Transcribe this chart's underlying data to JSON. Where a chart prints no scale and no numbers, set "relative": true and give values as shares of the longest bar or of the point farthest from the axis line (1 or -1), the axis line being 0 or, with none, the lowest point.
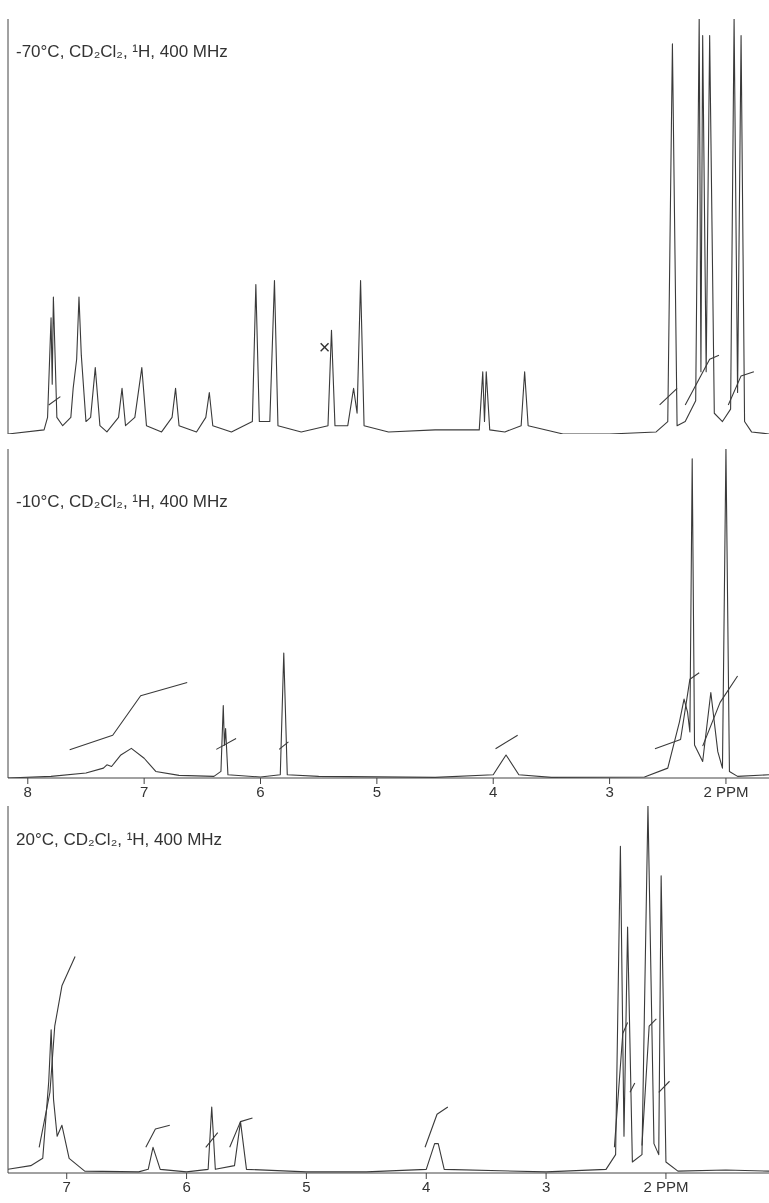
{
  "chart_data": [
    {
      "type": "line",
      "title": "-70°C, CD₂Cl₂, ¹H, 400 MHz",
      "relative": true,
      "xlim": [
        8.17,
        1.63
      ],
      "tick_labels": false,
      "annotations": [
        {
          "text": "×",
          "x": 5.39,
          "y": 0.21
        }
      ],
      "series": [
        {
          "color": "#3a3a3a",
          "x": [
            8.17,
            7.86,
            7.83,
            7.8,
            7.79,
            7.78,
            7.75,
            7.7,
            7.63,
            7.61,
            7.58,
            7.56,
            7.54,
            7.5,
            7.46,
            7.42,
            7.38,
            7.32,
            7.22,
            7.19,
            7.16,
            7.08,
            7.02,
            6.98,
            6.85,
            6.76,
            6.73,
            6.7,
            6.55,
            6.47,
            6.44,
            6.41,
            6.25,
            6.07,
            6.04,
            6.01,
            5.92,
            5.88,
            5.85,
            5.65,
            5.42,
            5.39,
            5.36,
            5.25,
            5.2,
            5.17,
            5.14,
            5.11,
            4.9,
            4.5,
            4.12,
            4.09,
            4.075,
            4.06,
            4.03,
            3.9,
            3.76,
            3.73,
            3.7,
            3.4,
            3.0,
            2.6,
            2.5,
            2.46,
            2.42,
            2.35,
            2.26,
            2.23,
            2.215,
            2.2,
            2.17,
            2.14,
            2.1,
            2.03,
            1.96,
            1.93,
            1.9,
            1.87,
            1.84,
            1.78,
            1.63
          ],
          "values": [
            0,
            0.01,
            0.04,
            0.28,
            0.12,
            0.33,
            0.04,
            0.02,
            0.04,
            0.11,
            0.18,
            0.33,
            0.19,
            0.03,
            0.04,
            0.16,
            0.02,
            0.005,
            0.04,
            0.11,
            0.02,
            0.04,
            0.16,
            0.02,
            0.005,
            0.04,
            0.11,
            0.02,
            0.005,
            0.04,
            0.1,
            0.02,
            0.005,
            0.03,
            0.36,
            0.03,
            0.03,
            0.37,
            0.02,
            0.005,
            0.02,
            0.25,
            0.02,
            0.02,
            0.11,
            0.05,
            0.37,
            0.02,
            0.005,
            0.01,
            0.01,
            0.15,
            0.03,
            0.15,
            0.01,
            0.005,
            0.02,
            0.15,
            0.02,
            0,
            0,
            0.005,
            0.03,
            0.94,
            0.02,
            0.03,
            0.08,
            1.0,
            0.15,
            0.96,
            0.15,
            0.96,
            0.05,
            0.03,
            0.06,
            1.0,
            0.1,
            0.96,
            0.03,
            0.005,
            0
          ]
        },
        {
          "color": "#3a3a3a",
          "x": [
            7.82,
            7.72,
            7.7,
            2.57,
            2.42,
            2.4,
            2.35,
            2.14,
            2.06,
            2.02,
            1.98,
            1.87,
            1.76
          ],
          "values": [
            0.07,
            0.09,
            null,
            0.07,
            0.11,
            null,
            0.07,
            0.18,
            0.19,
            null,
            0.07,
            0.14,
            0.15
          ]
        }
      ]
    },
    {
      "type": "line",
      "title": "-10°C, CD₂Cl₂, ¹H, 400 MHz",
      "relative": true,
      "xlim": [
        8.17,
        1.63
      ],
      "xticks": [
        8,
        7,
        6,
        5,
        4,
        3,
        {
          "value": 2,
          "label": "2 PPM"
        }
      ],
      "series": [
        {
          "color": "#3a3a3a",
          "x": [
            8.17,
            7.8,
            7.5,
            7.35,
            7.32,
            7.28,
            7.2,
            7.11,
            7.0,
            6.9,
            6.7,
            6.4,
            6.34,
            6.32,
            6.31,
            6.3,
            6.28,
            6.0,
            5.83,
            5.8,
            5.77,
            5.5,
            4.5,
            4.0,
            3.89,
            3.78,
            3.5,
            2.7,
            2.5,
            2.4,
            2.36,
            2.33,
            2.31,
            2.29,
            2.27,
            2.2,
            2.13,
            2.07,
            2.03,
            2.0,
            1.97,
            1.9,
            1.63
          ],
          "values": [
            0,
            0.005,
            0.015,
            0.03,
            0.04,
            0.035,
            0.07,
            0.09,
            0.06,
            0.02,
            0.008,
            0.005,
            0.02,
            0.22,
            0.1,
            0.15,
            0.01,
            0.003,
            0.01,
            0.38,
            0.01,
            0.005,
            0.002,
            0.01,
            0.07,
            0.01,
            0.002,
            0.003,
            0.03,
            0.17,
            0.24,
            0.2,
            0.14,
            0.97,
            0.1,
            0.05,
            0.26,
            0.08,
            0.03,
            1.0,
            0.02,
            0.005,
            0.01
          ]
        },
        {
          "color": "#3a3a3a",
          "x": [
            7.64,
            7.27,
            7.03,
            6.63,
            6.5,
            6.38,
            6.21,
            6.0,
            5.84,
            5.76,
            4.5,
            3.98,
            3.79,
            3.0,
            2.61,
            2.39,
            2.31,
            2.23,
            2.215,
            2.2,
            2.05,
            1.9
          ],
          "values": [
            0.086,
            0.13,
            0.25,
            0.29,
            null,
            0.087,
            0.12,
            null,
            0.087,
            0.11,
            null,
            0.089,
            0.13,
            null,
            0.089,
            0.117,
            0.3,
            0.32,
            null,
            0.097,
            0.23,
            0.31
          ]
        }
      ]
    },
    {
      "type": "line",
      "title": "20°C, CD₂Cl₂, ¹H, 400 MHz",
      "relative": true,
      "xlim": [
        7.49,
        1.14
      ],
      "xticks": [
        7,
        6,
        5,
        4,
        3,
        {
          "value": 2,
          "label": "2 PPM"
        }
      ],
      "series": [
        {
          "color": "#3a3a3a",
          "x": [
            7.49,
            7.3,
            7.2,
            7.15,
            7.13,
            7.11,
            7.08,
            7.04,
            6.98,
            6.85,
            6.4,
            6.32,
            6.28,
            6.26,
            6.22,
            6.0,
            5.82,
            5.79,
            5.76,
            5.6,
            5.55,
            5.5,
            5.0,
            4.5,
            4.0,
            3.93,
            3.9,
            3.85,
            3.0,
            2.5,
            2.42,
            2.38,
            2.35,
            2.32,
            2.28,
            2.2,
            2.15,
            2.1,
            2.06,
            2.04,
            2.0,
            1.9,
            1.5,
            1.14
          ],
          "values": [
            0.01,
            0.02,
            0.04,
            0.25,
            0.39,
            0.2,
            0.1,
            0.13,
            0.04,
            0.005,
            0.003,
            0.01,
            0.07,
            0.05,
            0.01,
            0.003,
            0.01,
            0.18,
            0.01,
            0.02,
            0.14,
            0.01,
            0.003,
            0.003,
            0.01,
            0.08,
            0.08,
            0.01,
            0.003,
            0.01,
            0.05,
            0.89,
            0.1,
            0.67,
            0.03,
            0.05,
            1.0,
            0.08,
            0.05,
            0.81,
            0.03,
            0.005,
            0.008,
            0.005
          ]
        },
        {
          "color": "#3a3a3a",
          "x": [
            7.23,
            7.14,
            7.1,
            7.04,
            6.93,
            6.6,
            6.34,
            6.26,
            6.14,
            6.0,
            5.84,
            5.74,
            5.7,
            5.64,
            5.55,
            5.45,
            4.5,
            4.01,
            3.91,
            3.82,
            3.0,
            2.43,
            2.36,
            2.32,
            2.31,
            2.3,
            2.26,
            2.23,
            2.2,
            2.14,
            2.08,
            2.07,
            2.06,
            1.97
          ],
          "values": [
            0.07,
            0.22,
            0.4,
            0.51,
            0.59,
            null,
            0.07,
            0.12,
            0.13,
            null,
            0.07,
            0.11,
            null,
            0.07,
            0.14,
            0.15,
            null,
            0.07,
            0.16,
            0.18,
            null,
            0.07,
            0.38,
            0.41,
            null,
            0.22,
            0.245,
            null,
            0.075,
            0.4,
            0.42,
            null,
            0.22,
            0.25
          ]
        }
      ]
    }
  ]
}
